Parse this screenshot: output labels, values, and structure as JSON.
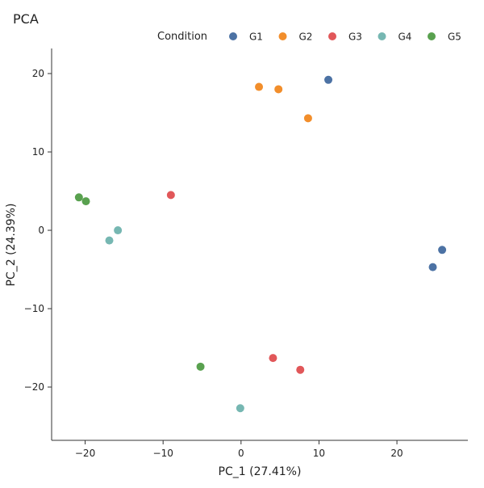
{
  "chart_data": {
    "type": "scatter",
    "title": "PCA",
    "xlabel": "PC_1 (27.41%)",
    "ylabel": "PC_2 (24.39%)",
    "xlim": [
      -24.3,
      29.1
    ],
    "ylim": [
      -26.8,
      23.2
    ],
    "xticks": [
      -20,
      -10,
      0,
      10,
      20
    ],
    "yticks": [
      20,
      10,
      0,
      -10,
      -20
    ],
    "xtick_labels": [
      "−20",
      "−10",
      "0",
      "10",
      "20"
    ],
    "ytick_labels": [
      "20",
      "10",
      "0",
      "−10",
      "−20"
    ],
    "grid": false,
    "legend": {
      "title": "Condition",
      "position": "top"
    },
    "series": [
      {
        "name": "G1",
        "color": "#4c72a4",
        "points": [
          [
            11.2,
            19.2
          ],
          [
            25.8,
            -2.5
          ],
          [
            24.6,
            -4.7
          ]
        ]
      },
      {
        "name": "G2",
        "color": "#f28e2b",
        "points": [
          [
            2.3,
            18.3
          ],
          [
            4.8,
            18.0
          ],
          [
            8.6,
            14.3
          ]
        ]
      },
      {
        "name": "G3",
        "color": "#e15759",
        "points": [
          [
            -9.0,
            4.5
          ],
          [
            4.1,
            -16.3
          ],
          [
            7.6,
            -17.8
          ]
        ]
      },
      {
        "name": "G4",
        "color": "#76b7b2",
        "points": [
          [
            -15.8,
            0.0
          ],
          [
            -16.9,
            -1.3
          ],
          [
            -0.1,
            -22.7
          ]
        ]
      },
      {
        "name": "G5",
        "color": "#59a14f",
        "points": [
          [
            -20.8,
            4.2
          ],
          [
            -19.9,
            3.7
          ],
          [
            -5.2,
            -17.4
          ]
        ]
      }
    ]
  }
}
